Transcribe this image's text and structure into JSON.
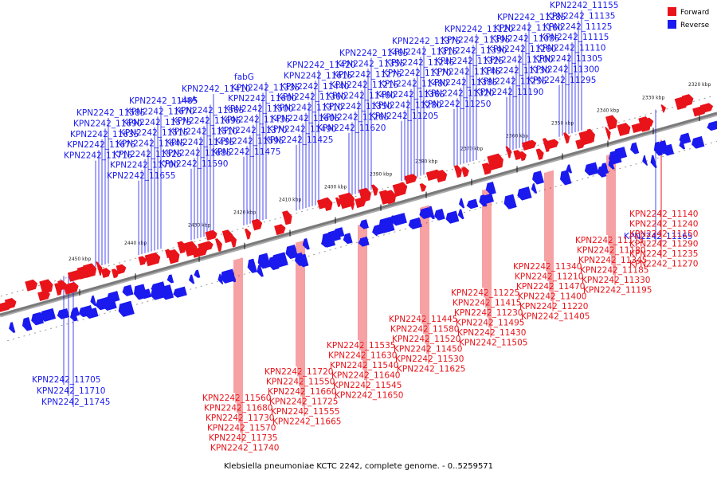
{
  "colors": {
    "forward": "#e8141a",
    "reverse": "#1a1aee",
    "backbone": "#7a7a7a",
    "tick": "#111111"
  },
  "caption": "Klebsiella pneumoniae KCTC 2242, complete genome. - 0..5259571",
  "legend": [
    {
      "name": "Forward",
      "color": "#e8141a"
    },
    {
      "name": "Reverse",
      "color": "#1a1aee"
    }
  ],
  "kbp_ticks": [
    "2320 kbp",
    "2330 kbp",
    "2340 kbp",
    "2350 kbp",
    "2360 kbp",
    "2370 kbp",
    "2380 kbp",
    "2390 kbp",
    "2400 kbp",
    "2410 kbp",
    "2420 kbp",
    "2430 kbp",
    "2440 kbp",
    "2450 kbp"
  ],
  "reverse_genes": [
    "KPN2242_11155",
    "KPN2242_11135",
    "KPN2242_11125",
    "KPN2242_11115",
    "KPN2242_11110",
    "KPN2242_11305",
    "KPN2242_11300",
    "KPN2242_11295",
    "KPN2242_11285",
    "KPN2242_11160",
    "KPN2242_11085",
    "KPN2242_11260",
    "KPN2242_11200",
    "KPN2242_11130",
    "KPN2242_11255",
    "KPN2242_11190",
    "KPN2242_11120",
    "KPN2242_11395",
    "KPN2242_11390",
    "KPN2242_11325",
    "KPN2242_11145",
    "KPN2242_11385",
    "KPN2242_11320",
    "KPN2242_11250",
    "KPN2242_11375",
    "KPN2242_11315",
    "KPN2242_11245",
    "KPN2242_11170",
    "KPN2242_11480",
    "KPN2242_11365",
    "KPN2242_11280",
    "KPN2242_11205",
    "KPN2242_11465",
    "KPN2242_11355",
    "KPN2242_11275",
    "KPN2242_11215",
    "KPN2242_11460",
    "KPN2242_11350",
    "KPN2242_11265",
    "KPN2242_11620",
    "KPN2242_11420",
    "KPN2242_11615",
    "KPN2242_11440",
    "KPN2242_11360",
    "KPN2242_11310",
    "KPN2242_11605",
    "KPN2242_11490",
    "KPN2242_11425",
    "fabG",
    "KPN2242_11335",
    "KPN2242_11600",
    "KPN2242_11500",
    "KPN2242_11435",
    "KPN2242_11370",
    "KPN2242_11595",
    "KPN2242_11475",
    "KPN2242_11410",
    "ulaA",
    "KPN2242_11565",
    "KPN2242_11695",
    "KPN2242_11510",
    "KPN2242_11455",
    "KPN2242_11685",
    "KPN2242_11590",
    "KPN2242_11485",
    "KPN2242_11670",
    "KPN2242_11575",
    "KPN2242_11515",
    "KPN2242_11645",
    "KPN2242_11525",
    "KPN2242_11700",
    "KPN2242_11655",
    "KPN2242_11585",
    "KPN2242_11690",
    "KPN2242_11635",
    "KPN2242_11675",
    "KPN2242_11715",
    "KPN2242_11705",
    "KPN2242_11710",
    "KPN2242_11745",
    "KPN2242_11165"
  ],
  "forward_genes": [
    "KPN2242_11140",
    "KPN2242_11240",
    "KPN2242_11150",
    "KPN2242_11290",
    "KPN2242_11235",
    "KPN2242_11270",
    "KPN2242_11175",
    "KPN2242_11180",
    "KPN2242_11345",
    "KPN2242_11185",
    "KPN2242_11330",
    "KPN2242_11195",
    "KPN2242_11340",
    "KPN2242_11210",
    "KPN2242_11470",
    "KPN2242_11400",
    "KPN2242_11220",
    "KPN2242_11405",
    "KPN2242_11225",
    "KPN2242_11415",
    "KPN2242_11230",
    "KPN2242_11495",
    "KPN2242_11430",
    "KPN2242_11505",
    "KPN2242_11445",
    "KPN2242_11580",
    "KPN2242_11520",
    "KPN2242_11450",
    "KPN2242_11530",
    "KPN2242_11625",
    "KPN2242_11535",
    "KPN2242_11630",
    "KPN2242_11540",
    "KPN2242_11640",
    "KPN2242_11545",
    "KPN2242_11650",
    "KPN2242_11720",
    "KPN2242_11550",
    "KPN2242_11660",
    "KPN2242_11725",
    "KPN2242_11555",
    "KPN2242_11665",
    "KPN2242_11560",
    "KPN2242_11680",
    "KPN2242_11730",
    "KPN2242_11570",
    "KPN2242_11735",
    "KPN2242_11740"
  ]
}
